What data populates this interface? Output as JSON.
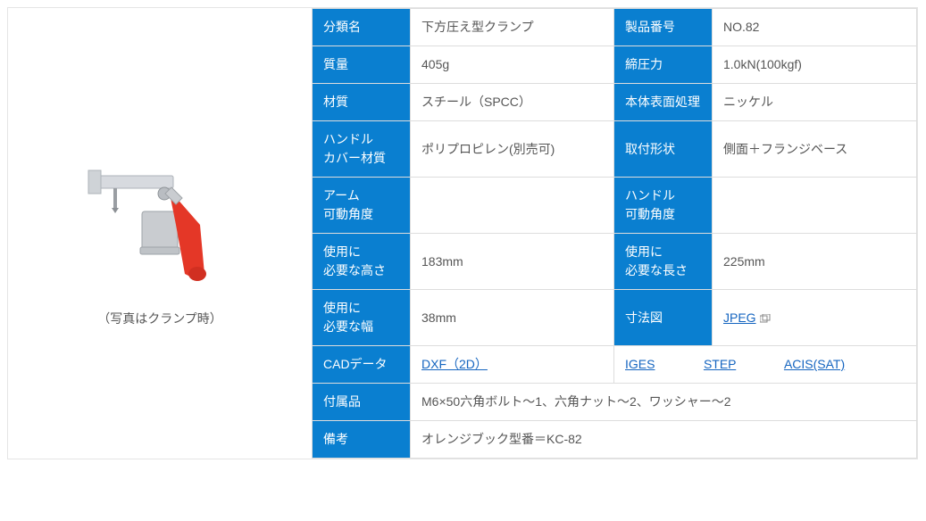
{
  "palette": {
    "header_bg": "#0a7fd0",
    "header_fg": "#ffffff",
    "link_color": "#1565c0",
    "border_color": "#dddddd",
    "value_fg": "#555555"
  },
  "image": {
    "caption": "（写真はクランプ時）"
  },
  "spec": {
    "r1": {
      "k1": "分類名",
      "v1": "下方圧え型クランプ",
      "k2": "製品番号",
      "v2": "NO.82"
    },
    "r2": {
      "k1": "質量",
      "v1": "405g",
      "k2": "締圧力",
      "v2": "1.0kN(100kgf)"
    },
    "r3": {
      "k1": "材質",
      "v1": "スチール（SPCC）",
      "k2": "本体表面処理",
      "v2": "ニッケル"
    },
    "r4": {
      "k1": "ハンドル\nカバー材質",
      "v1": "ポリプロピレン(別売可)",
      "k2": "取付形状",
      "v2": "側面＋フランジベース"
    },
    "r5": {
      "k1": "アーム\n可動角度",
      "v1": "",
      "k2": "ハンドル\n可動角度",
      "v2": ""
    },
    "r6": {
      "k1": "使用に\n必要な高さ",
      "v1": "183mm",
      "k2": "使用に\n必要な長さ",
      "v2": "225mm"
    },
    "r7": {
      "k1": "使用に\n必要な幅",
      "v1": "38mm",
      "k2": "寸法図",
      "v2_link": "JPEG"
    },
    "cad": {
      "k": "CADデータ",
      "links": {
        "dxf": "DXF（2D）",
        "iges": "IGES",
        "step": "STEP",
        "acis": "ACIS(SAT)"
      }
    },
    "acc": {
      "k": "付属品",
      "v": "M6×50六角ボルト〜1、六角ナット〜2、ワッシャー〜2"
    },
    "note": {
      "k": "備考",
      "v": "オレンジブック型番＝KC-82"
    }
  }
}
